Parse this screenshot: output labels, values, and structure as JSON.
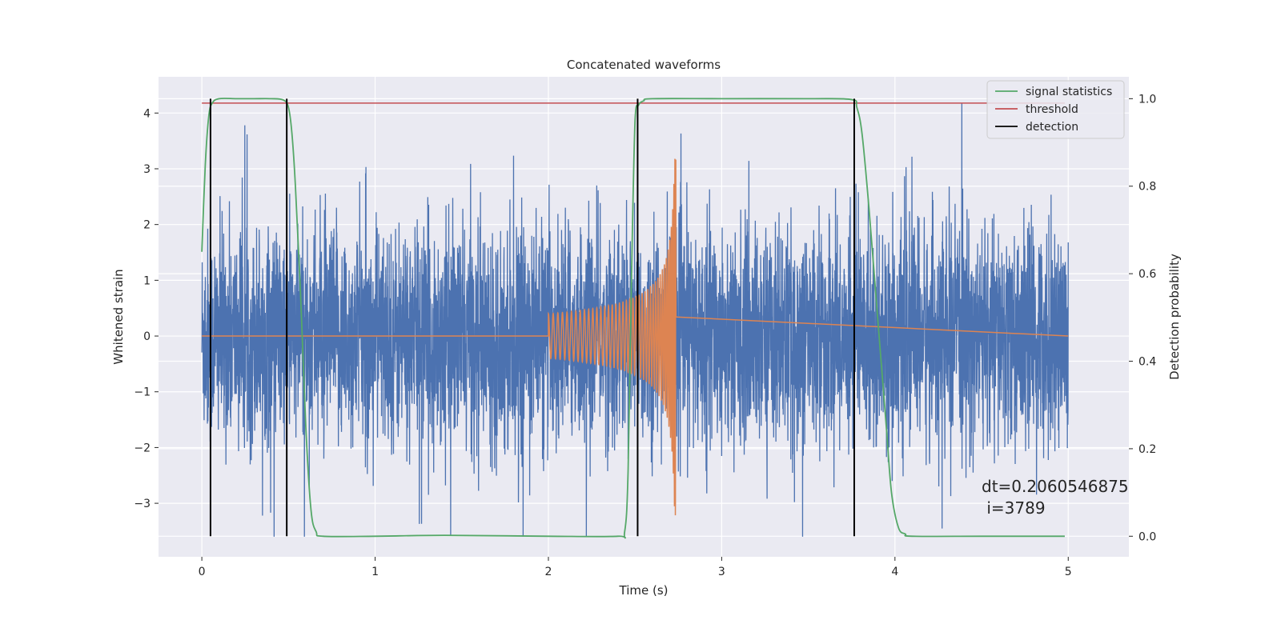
{
  "chart_data": {
    "type": "line",
    "title": "Concatenated waveforms",
    "xlabel": "Time (s)",
    "ylabel": "Whitened strain",
    "y2label": "Detection probability",
    "xlim": [
      -0.25,
      5.35
    ],
    "ylim": [
      -3.96,
      4.65
    ],
    "y2lim": [
      -0.047,
      1.05
    ],
    "xticks": [
      0,
      1,
      2,
      3,
      4,
      5
    ],
    "yticks": [
      -3,
      -2,
      -1,
      0,
      1,
      2,
      3,
      4
    ],
    "y2ticks": [
      0.0,
      0.2,
      0.4,
      0.6,
      0.8,
      1.0
    ],
    "xtick_labels": [
      "0",
      "1",
      "2",
      "3",
      "4",
      "5"
    ],
    "ytick_labels": [
      "−3",
      "−2",
      "−1",
      "0",
      "1",
      "2",
      "3",
      "4"
    ],
    "y2tick_labels": [
      "0.0",
      "0.2",
      "0.4",
      "0.6",
      "0.8",
      "1.0"
    ],
    "grid": true,
    "legend_position": "top-right",
    "series": [
      {
        "name": "",
        "axis": "left",
        "color": "#4c72b0",
        "description": "whitened noise strain",
        "x_range": [
          0,
          5
        ],
        "approx_range": [
          -3.6,
          4.3
        ]
      },
      {
        "name": "",
        "axis": "left",
        "color": "#dd8452",
        "description": "injected chirp waveform",
        "x_start": 2.0,
        "x_end": 2.74,
        "amplitude_start": 0.4,
        "amplitude_peak": 3.3
      },
      {
        "name": "signal statistics",
        "axis": "right",
        "color": "#55a868",
        "x": [
          0.0,
          0.02,
          0.04,
          0.06,
          0.1,
          0.2,
          0.3,
          0.4,
          0.47,
          0.5,
          0.52,
          0.54,
          0.57,
          0.6,
          0.63,
          0.66,
          0.7,
          1.0,
          1.4,
          2.0,
          2.4,
          2.44,
          2.46,
          2.48,
          2.5,
          2.52,
          2.55,
          2.6,
          3.0,
          3.5,
          3.75,
          3.78,
          3.81,
          3.85,
          3.9,
          3.95,
          3.98,
          4.02,
          4.06,
          4.1,
          4.5,
          4.98
        ],
        "y": [
          0.65,
          0.85,
          0.96,
          0.99,
          1.0,
          1.0,
          1.0,
          1.0,
          0.997,
          0.98,
          0.92,
          0.8,
          0.55,
          0.25,
          0.06,
          0.01,
          0.0,
          0.0,
          0.002,
          0.0,
          0.0,
          0.01,
          0.15,
          0.6,
          0.95,
          0.985,
          0.995,
          1.0,
          1.0,
          1.0,
          0.998,
          0.98,
          0.92,
          0.75,
          0.5,
          0.25,
          0.1,
          0.02,
          0.005,
          0.0,
          0.0,
          0.0
        ]
      },
      {
        "name": "threshold",
        "axis": "right",
        "color": "#c44e52",
        "x": [
          0.0,
          4.98
        ],
        "y": [
          0.99,
          0.99
        ]
      },
      {
        "name": "detection",
        "axis": "right",
        "color": "#000000",
        "type": "vlines",
        "x": [
          0.05,
          0.49,
          2.515,
          3.765
        ],
        "y_range": [
          0.0,
          1.0
        ]
      }
    ],
    "annotation": {
      "line1": "dt=0.2060546875",
      "line2": " i=3789",
      "x": 4.5,
      "y": -2.7
    }
  }
}
